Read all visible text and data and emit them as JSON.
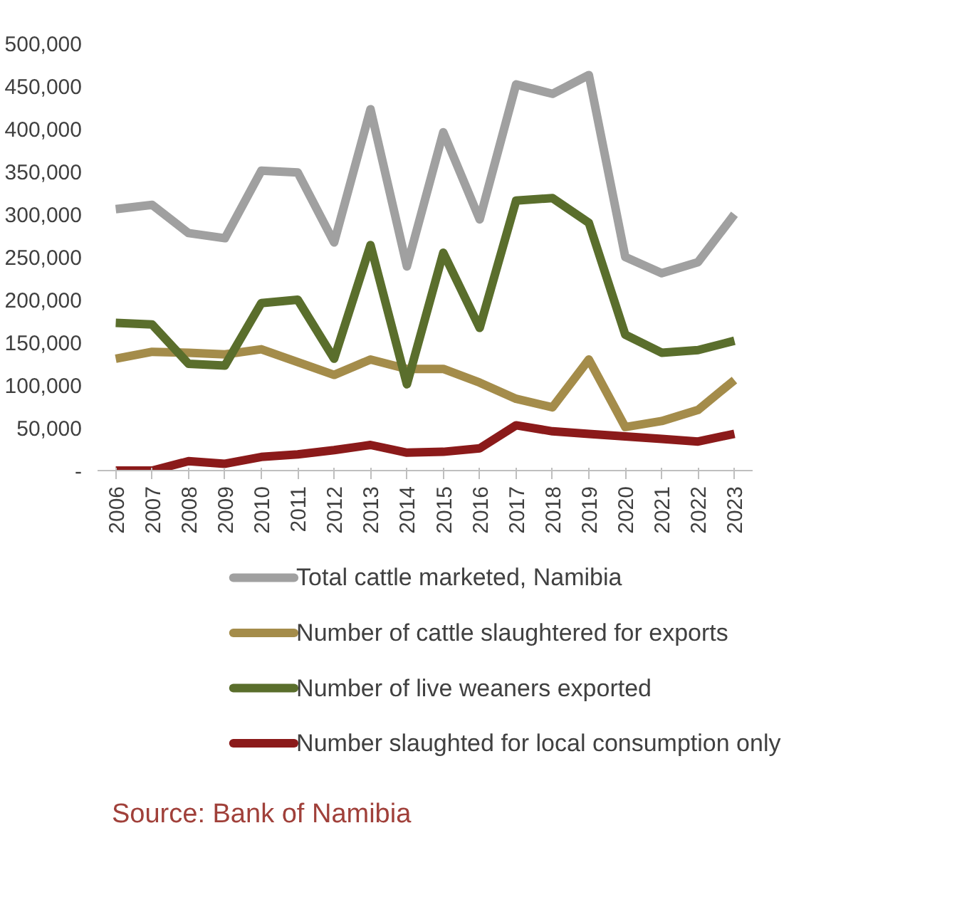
{
  "chart_data": {
    "type": "line",
    "categories": [
      "2006",
      "2007",
      "2008",
      "2009",
      "2010",
      "2011",
      "2012",
      "2013",
      "2014",
      "2015",
      "2016",
      "2017",
      "2018",
      "2019",
      "2020",
      "2021",
      "2022",
      "2023"
    ],
    "series": [
      {
        "name": "Total cattle marketed, Namibia",
        "color": "#a0a0a0",
        "values": [
          306000,
          311000,
          278000,
          272000,
          351000,
          349000,
          267000,
          423000,
          239000,
          396000,
          294000,
          452000,
          441000,
          463000,
          250000,
          231000,
          244000,
          300000
        ]
      },
      {
        "name": "Number of cattle slaughtered for exports",
        "color": "#a48c4a",
        "values": [
          131000,
          139000,
          138000,
          136000,
          142000,
          127000,
          112000,
          130000,
          119000,
          119000,
          103000,
          84000,
          74000,
          130000,
          51000,
          58000,
          71000,
          106000
        ]
      },
      {
        "name": "Number of live weaners exported",
        "color": "#5a6e2c",
        "values": [
          173000,
          171000,
          125000,
          123000,
          196000,
          200000,
          131000,
          264000,
          101000,
          255000,
          167000,
          316000,
          319000,
          290000,
          159000,
          138000,
          141000,
          152000
        ]
      },
      {
        "name": "Number slaughted for local consumption only",
        "color": "#8b1a1a",
        "values": [
          0,
          0,
          11000,
          8000,
          16000,
          19000,
          24000,
          30000,
          21000,
          22000,
          26000,
          53000,
          46000,
          43000,
          40000,
          37000,
          34000,
          43000
        ]
      }
    ],
    "ylim": [
      0,
      500000
    ],
    "yticks": [
      {
        "value": 0,
        "label": "-"
      },
      {
        "value": 50000,
        "label": "50,000"
      },
      {
        "value": 100000,
        "label": "100,000"
      },
      {
        "value": 150000,
        "label": "150,000"
      },
      {
        "value": 200000,
        "label": "200,000"
      },
      {
        "value": 250000,
        "label": "250,000"
      },
      {
        "value": 300000,
        "label": "300,000"
      },
      {
        "value": 350000,
        "label": "350,000"
      },
      {
        "value": 400000,
        "label": "400,000"
      },
      {
        "value": 450000,
        "label": "450,000"
      },
      {
        "value": 500000,
        "label": "500,000"
      }
    ],
    "grid": false,
    "legend": "bottom",
    "line_style": "solid",
    "marker": "none",
    "annotations": [
      "Source: Bank of Namibia"
    ]
  }
}
